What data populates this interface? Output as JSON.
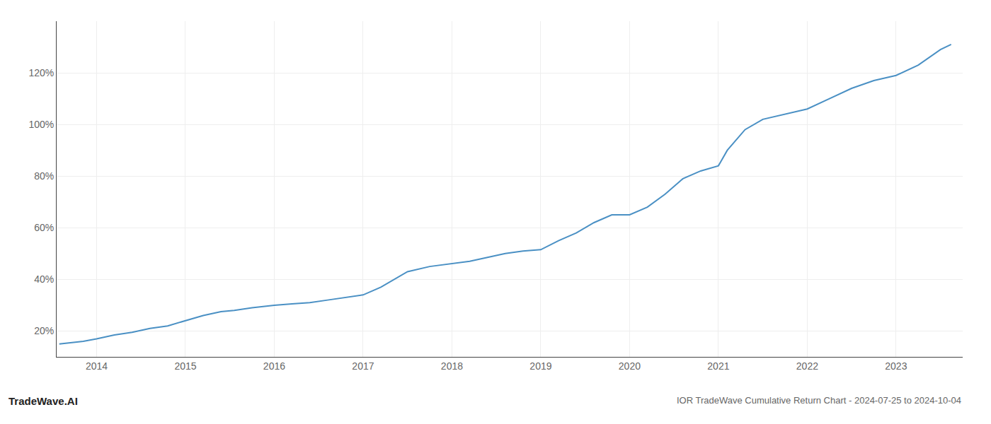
{
  "chart_data": {
    "type": "line",
    "title": "IOR TradeWave Cumulative Return Chart - 2024-07-25 to 2024-10-04",
    "annotations": [
      {
        "text": "TradeWave.AI"
      }
    ],
    "x": [
      2013.58,
      2013.7,
      2013.85,
      2014.0,
      2014.2,
      2014.4,
      2014.6,
      2014.8,
      2015.0,
      2015.2,
      2015.4,
      2015.55,
      2015.75,
      2016.0,
      2016.2,
      2016.4,
      2016.6,
      2016.8,
      2017.0,
      2017.2,
      2017.5,
      2017.75,
      2018.0,
      2018.2,
      2018.4,
      2018.6,
      2018.8,
      2019.0,
      2019.2,
      2019.4,
      2019.6,
      2019.8,
      2020.0,
      2020.2,
      2020.4,
      2020.6,
      2020.8,
      2021.0,
      2021.1,
      2021.3,
      2021.5,
      2021.75,
      2022.0,
      2022.25,
      2022.5,
      2022.75,
      2023.0,
      2023.25,
      2023.5,
      2023.62
    ],
    "values": [
      15,
      15.5,
      16,
      17,
      18.5,
      19.5,
      21,
      22,
      24,
      26,
      27.5,
      28,
      29,
      30,
      30.5,
      31,
      32,
      33,
      34,
      37,
      43,
      45,
      46,
      47,
      48.5,
      50,
      51,
      51.5,
      55,
      58,
      62,
      65,
      65,
      68,
      73,
      79,
      82,
      84,
      90,
      98,
      102,
      104,
      106,
      110,
      114,
      117,
      119,
      123,
      129,
      131
    ],
    "color": "#4a90c4",
    "xlim": [
      2013.55,
      2023.75
    ],
    "xticks": [
      2014,
      2015,
      2016,
      2017,
      2018,
      2019,
      2020,
      2021,
      2022,
      2023
    ],
    "ylim": [
      10,
      140
    ],
    "yticks": [
      {
        "value": 20,
        "label": "20%"
      },
      {
        "value": 40,
        "label": "40%"
      },
      {
        "value": 60,
        "label": "60%"
      },
      {
        "value": 80,
        "label": "80%"
      },
      {
        "value": 100,
        "label": "100%"
      },
      {
        "value": 120,
        "label": "120%"
      }
    ],
    "grid": true
  }
}
